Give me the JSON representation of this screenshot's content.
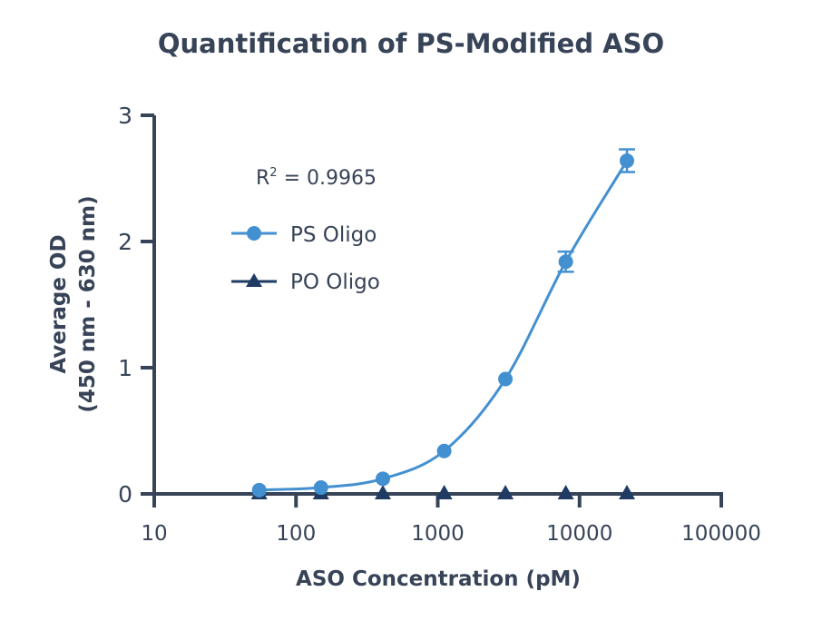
{
  "chart_data": {
    "type": "scatter",
    "title": "Quantification of PS-Modified ASO",
    "xlabel": "ASO Concentration (pM)",
    "ylabel_line1": "Average OD",
    "ylabel_line2": "(450 nm - 630 nm)",
    "x_scale": "log",
    "xlim": [
      10,
      100000
    ],
    "ylim": [
      0,
      3
    ],
    "x_ticks": [
      "10",
      "100",
      "1000",
      "10000",
      "100000"
    ],
    "y_ticks": [
      "0",
      "1",
      "2",
      "3"
    ],
    "grid": false,
    "legend_placement": "top-left",
    "annotation": {
      "r2_label": "R",
      "r2_sup": "2",
      "r2_value": " = 0.9965"
    },
    "series": [
      {
        "name": "PS Oligo",
        "marker": "circle",
        "color": "#4390d0",
        "fit": "sigmoidal",
        "x": [
          55,
          150,
          410,
          1110,
          3000,
          8000,
          21600
        ],
        "y": [
          0.03,
          0.05,
          0.12,
          0.34,
          0.91,
          1.84,
          2.64
        ],
        "error": [
          0,
          0,
          0,
          0,
          0,
          0.08,
          0.09
        ]
      },
      {
        "name": "PO Oligo",
        "marker": "triangle",
        "color": "#1f3b63",
        "x": [
          55,
          150,
          410,
          1110,
          3000,
          8000,
          21600
        ],
        "y": [
          0,
          0,
          0,
          0,
          0,
          0,
          0
        ]
      }
    ],
    "axis_color": "#374357"
  }
}
